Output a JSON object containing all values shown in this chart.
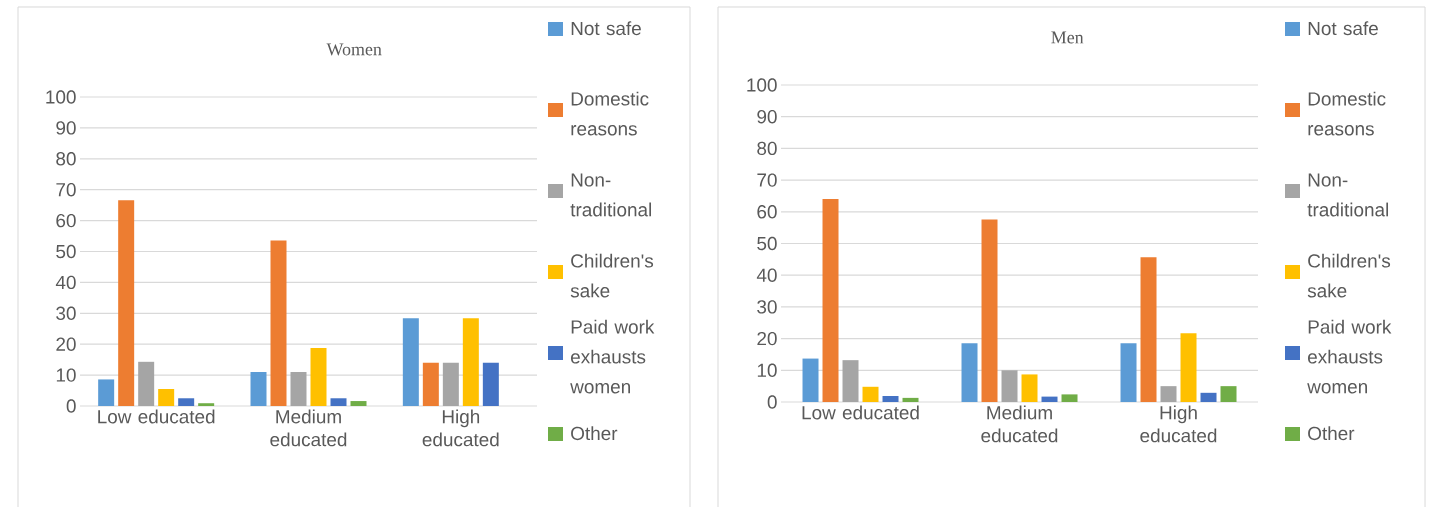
{
  "chart_data": [
    {
      "type": "bar",
      "title": "Women",
      "categories": [
        "Low educated",
        "Medium educated",
        "High educated"
      ],
      "ylim": [
        0,
        100
      ],
      "yticks": [
        0,
        10,
        20,
        30,
        40,
        50,
        60,
        70,
        80,
        90,
        100
      ],
      "grid": "y",
      "legend": "right",
      "series": [
        {
          "name": "Not safe",
          "color": "#5b9bd5",
          "values": [
            8.6,
            11,
            28.4
          ]
        },
        {
          "name": "Domestic reasons",
          "color": "#ed7d31",
          "values": [
            66.6,
            53.6,
            14
          ]
        },
        {
          "name": "Non-traditional",
          "color": "#a5a5a5",
          "values": [
            14.3,
            11,
            14
          ]
        },
        {
          "name": "Children's sake",
          "color": "#ffc000",
          "values": [
            5.5,
            18.8,
            28.4
          ]
        },
        {
          "name": "Paid work exhausts women",
          "color": "#4472c4",
          "values": [
            2.5,
            2.5,
            14
          ]
        },
        {
          "name": "Other",
          "color": "#70ad47",
          "values": [
            0.9,
            1.6,
            0
          ]
        }
      ]
    },
    {
      "type": "bar",
      "title": "Men",
      "categories": [
        "Low educated",
        "Medium educated",
        "High educated"
      ],
      "ylim": [
        0,
        100
      ],
      "yticks": [
        0,
        10,
        20,
        30,
        40,
        50,
        60,
        70,
        80,
        90,
        100
      ],
      "grid": "y",
      "legend": "right",
      "series": [
        {
          "name": "Not safe",
          "color": "#5b9bd5",
          "values": [
            13.7,
            18.5,
            18.5
          ]
        },
        {
          "name": "Domestic reasons",
          "color": "#ed7d31",
          "values": [
            64,
            57.6,
            45.7
          ]
        },
        {
          "name": "Non-traditional",
          "color": "#a5a5a5",
          "values": [
            13.2,
            10,
            5
          ]
        },
        {
          "name": "Children's sake",
          "color": "#ffc000",
          "values": [
            4.8,
            8.7,
            21.7
          ]
        },
        {
          "name": "Paid work exhausts women",
          "color": "#4472c4",
          "values": [
            1.9,
            1.7,
            2.9
          ]
        },
        {
          "name": "Other",
          "color": "#70ad47",
          "values": [
            1.3,
            2.4,
            5
          ]
        }
      ]
    }
  ]
}
